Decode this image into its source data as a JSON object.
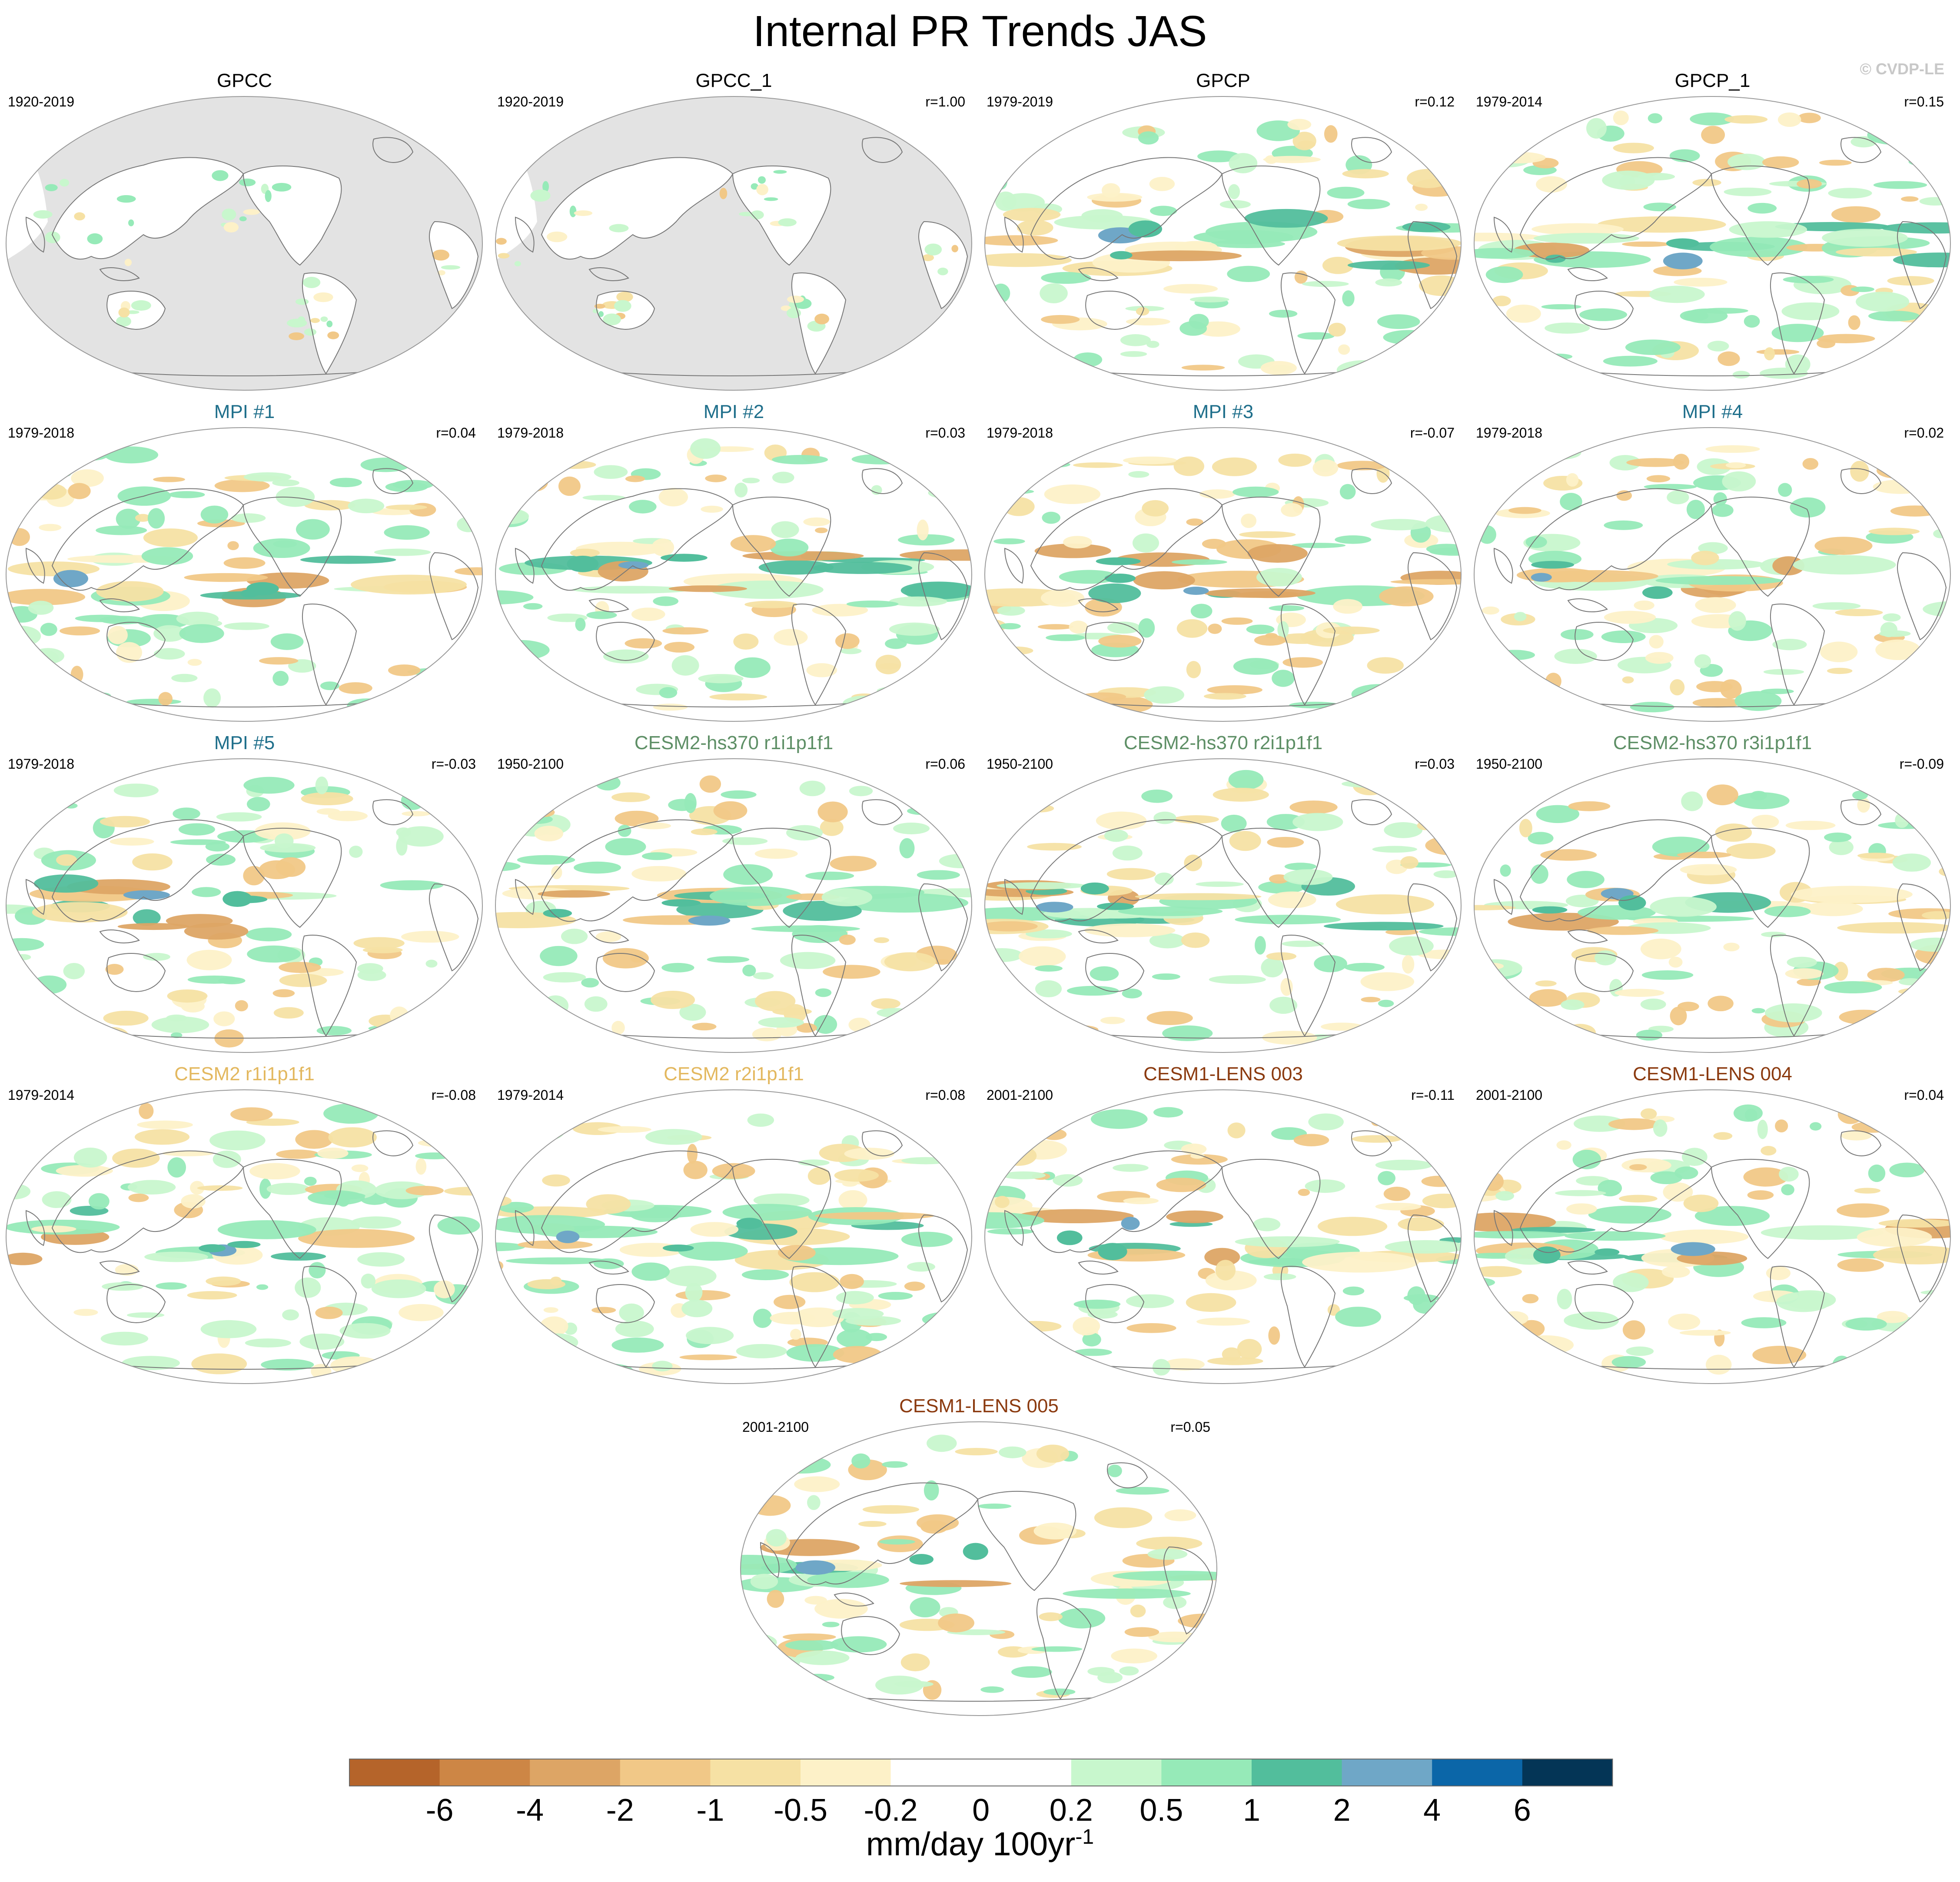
{
  "title": "Internal PR Trends JAS",
  "watermark": "© CVDP-LE",
  "panels": [
    {
      "title": "GPCC",
      "period": "1920-2019",
      "r": "",
      "color": "#000000",
      "type": "gpcc"
    },
    {
      "title": "GPCC_1",
      "period": "1920-2019",
      "r": "r=1.00",
      "color": "#000000",
      "type": "gpcc"
    },
    {
      "title": "GPCP",
      "period": "1979-2019",
      "r": "r=0.12",
      "color": "#000000",
      "type": "full"
    },
    {
      "title": "GPCP_1",
      "period": "1979-2014",
      "r": "r=0.15",
      "color": "#000000",
      "type": "full"
    },
    {
      "title": "MPI #1",
      "period": "1979-2018",
      "r": "r=0.04",
      "color": "#1f6f8b",
      "type": "full"
    },
    {
      "title": "MPI #2",
      "period": "1979-2018",
      "r": "r=0.03",
      "color": "#1f6f8b",
      "type": "full"
    },
    {
      "title": "MPI #3",
      "period": "1979-2018",
      "r": "r=-0.07",
      "color": "#1f6f8b",
      "type": "full"
    },
    {
      "title": "MPI #4",
      "period": "1979-2018",
      "r": "r=0.02",
      "color": "#1f6f8b",
      "type": "full"
    },
    {
      "title": "MPI #5",
      "period": "1979-2018",
      "r": "r=-0.03",
      "color": "#1f6f8b",
      "type": "full"
    },
    {
      "title": "CESM2-hs370 r1i1p1f1",
      "period": "1950-2100",
      "r": "r=0.06",
      "color": "#5e8f66",
      "type": "full"
    },
    {
      "title": "CESM2-hs370 r2i1p1f1",
      "period": "1950-2100",
      "r": "r=0.03",
      "color": "#5e8f66",
      "type": "full"
    },
    {
      "title": "CESM2-hs370 r3i1p1f1",
      "period": "1950-2100",
      "r": "r=-0.09",
      "color": "#5e8f66",
      "type": "full"
    },
    {
      "title": "CESM2 r1i1p1f1",
      "period": "1979-2014",
      "r": "r=-0.08",
      "color": "#e3b85f",
      "type": "full"
    },
    {
      "title": "CESM2 r2i1p1f1",
      "period": "1979-2014",
      "r": "r=0.08",
      "color": "#e3b85f",
      "type": "full"
    },
    {
      "title": "CESM1-LENS 003",
      "period": "2001-2100",
      "r": "r=-0.11",
      "color": "#8b3a0f",
      "type": "full"
    },
    {
      "title": "CESM1-LENS 004",
      "period": "2001-2100",
      "r": "r=0.04",
      "color": "#8b3a0f",
      "type": "full"
    },
    {
      "title": "CESM1-LENS 005",
      "period": "2001-2100",
      "r": "r=0.05",
      "color": "#8b3a0f",
      "type": "full"
    }
  ],
  "colorbar": {
    "colors": [
      "#b5642a",
      "#cd8645",
      "#dda565",
      "#f1c887",
      "#f6e1a4",
      "#fdf1c8",
      "#ffffff",
      "#ffffff",
      "#c8f7cd",
      "#96eab8",
      "#52be9c",
      "#6fa7c7",
      "#0b66a8",
      "#043556"
    ],
    "labels": [
      "-6",
      "-4",
      "-2",
      "-1",
      "-0.5",
      "-0.2",
      "0",
      "0.2",
      "0.5",
      "1",
      "2",
      "4",
      "6"
    ],
    "units": "mm/day 100yr",
    "units_exp": "-1"
  }
}
